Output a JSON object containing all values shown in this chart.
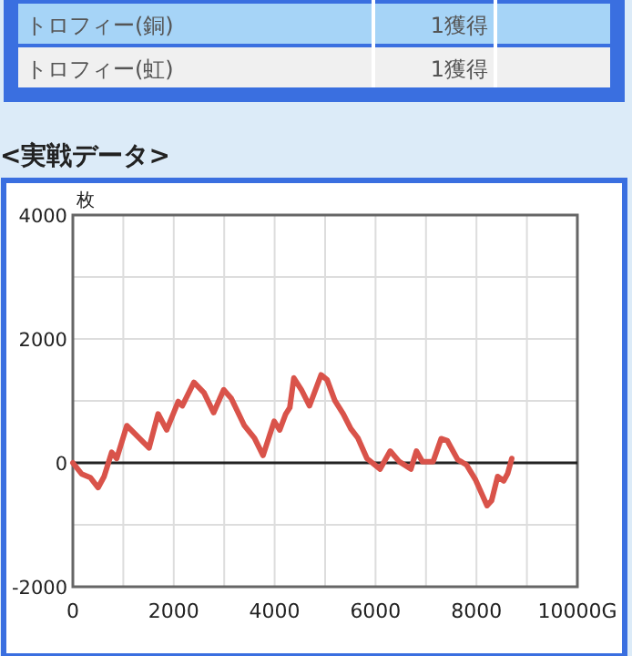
{
  "chart_data": {
    "type": "line",
    "title": "<実戦データ>",
    "ylabel": "枚",
    "annotations": [
      "トロフィー(銅)",
      "1獲得",
      "トロフィー(虹)",
      "1獲得"
    ],
    "x": [
      0,
      175,
      350,
      500,
      620,
      770,
      870,
      1070,
      1510,
      1690,
      1860,
      2090,
      2170,
      2400,
      2600,
      2790,
      2990,
      3140,
      3400,
      3600,
      3770,
      3990,
      4100,
      4220,
      4300,
      4380,
      4530,
      4690,
      4920,
      5040,
      5190,
      5360,
      5510,
      5650,
      5830,
      6090,
      6290,
      6470,
      6700,
      6810,
      6930,
      7140,
      7300,
      7420,
      7630,
      7800,
      7980,
      8210,
      8300,
      8420,
      8540,
      8620,
      8700
    ],
    "series": [
      {
        "color": "#d9534a",
        "values": [
          0,
          -180,
          -240,
          -400,
          -220,
          170,
          70,
          600,
          240,
          790,
          530,
          990,
          920,
          1300,
          1130,
          810,
          1180,
          1040,
          600,
          400,
          120,
          670,
          530,
          790,
          890,
          1370,
          1180,
          920,
          1420,
          1340,
          1010,
          790,
          550,
          400,
          70,
          -100,
          190,
          20,
          -100,
          190,
          20,
          20,
          390,
          360,
          50,
          -30,
          -270,
          -690,
          -610,
          -220,
          -290,
          -170,
          70
        ]
      }
    ],
    "xlim": [
      0,
      10000
    ],
    "ylim": [
      -2000,
      4000
    ],
    "xticks": [
      0,
      {
        "value": 1000,
        "label": null
      },
      2000,
      {
        "value": 3000,
        "label": null
      },
      4000,
      {
        "value": 5000,
        "label": null
      },
      6000,
      {
        "value": 7000,
        "label": null
      },
      8000,
      {
        "value": 9000,
        "label": null
      },
      {
        "value": 10000,
        "label": "10000G"
      }
    ],
    "yticks": [
      -2000,
      {
        "value": -1000,
        "label": null
      },
      0,
      {
        "value": 1000,
        "label": null
      },
      2000,
      {
        "value": 3000,
        "label": null
      },
      4000
    ],
    "grid": true,
    "ref_lines": [
      {
        "axis": "y",
        "value": 0,
        "color": "#222222"
      }
    ],
    "line_style": "solid",
    "marker": "none"
  }
}
